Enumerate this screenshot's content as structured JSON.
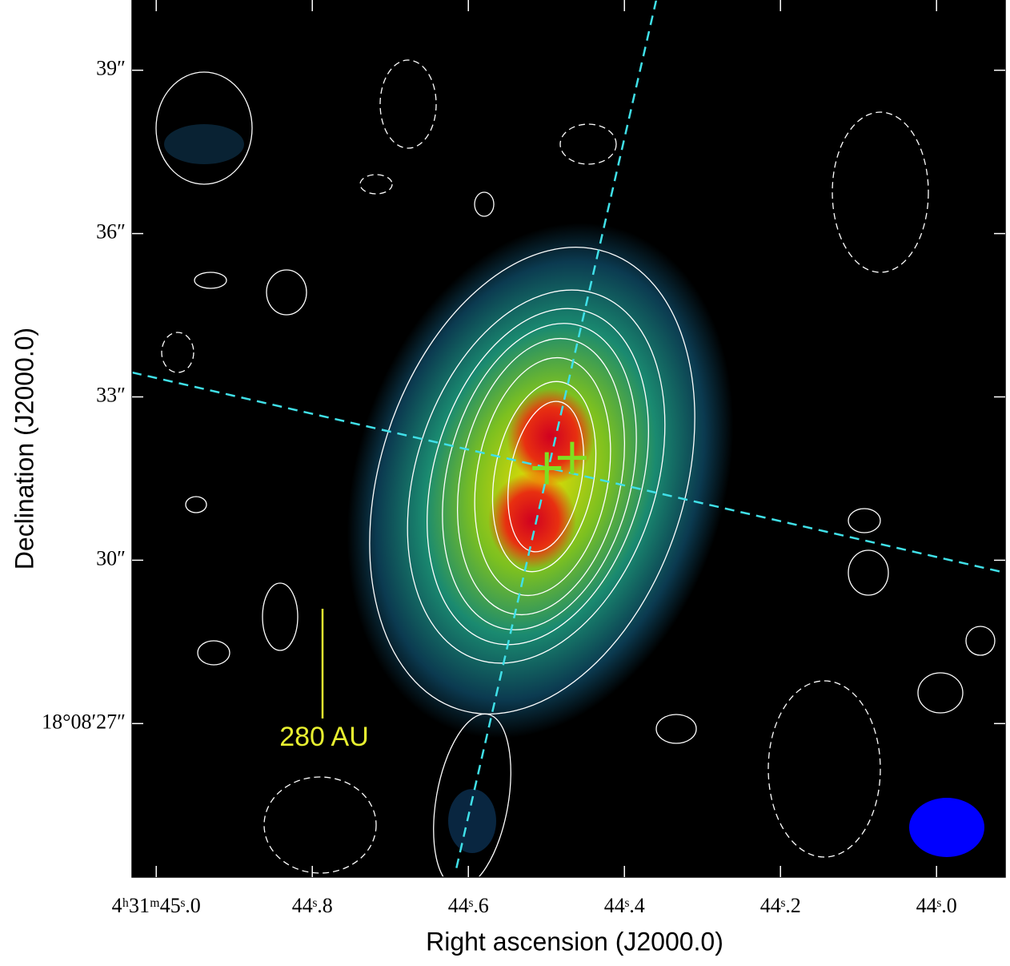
{
  "chart_data": {
    "type": "image",
    "x_label": "Right ascension (J2000.0)",
    "y_label": "Declination (J2000.0)",
    "xlim": [
      45.031,
      43.912
    ],
    "ylim": [
      40.29,
      24.18
    ],
    "xticks": [
      {
        "value": 45.0,
        "label": "4ʰ31ᵐ45ˢ.0"
      },
      {
        "value": 44.8,
        "label": "44ˢ.8"
      },
      {
        "value": 44.6,
        "label": "44ˢ.6"
      },
      {
        "value": 44.4,
        "label": "44ˢ.4"
      },
      {
        "value": 44.2,
        "label": "44ˢ.2"
      },
      {
        "value": 44.0,
        "label": "44ˢ.0"
      }
    ],
    "yticks": [
      {
        "value": 39,
        "label": "39″"
      },
      {
        "value": 36,
        "label": "36″"
      },
      {
        "value": 33,
        "label": "33″"
      },
      {
        "value": 30,
        "label": "30″"
      },
      {
        "value": 27,
        "label": "18°08′27″"
      }
    ],
    "sources": {
      "color": "#7fe020",
      "x": [
        44.4995,
        44.467
      ],
      "y": [
        31.69,
        31.88
      ]
    },
    "scale_bar_label": "280 AU"
  }
}
